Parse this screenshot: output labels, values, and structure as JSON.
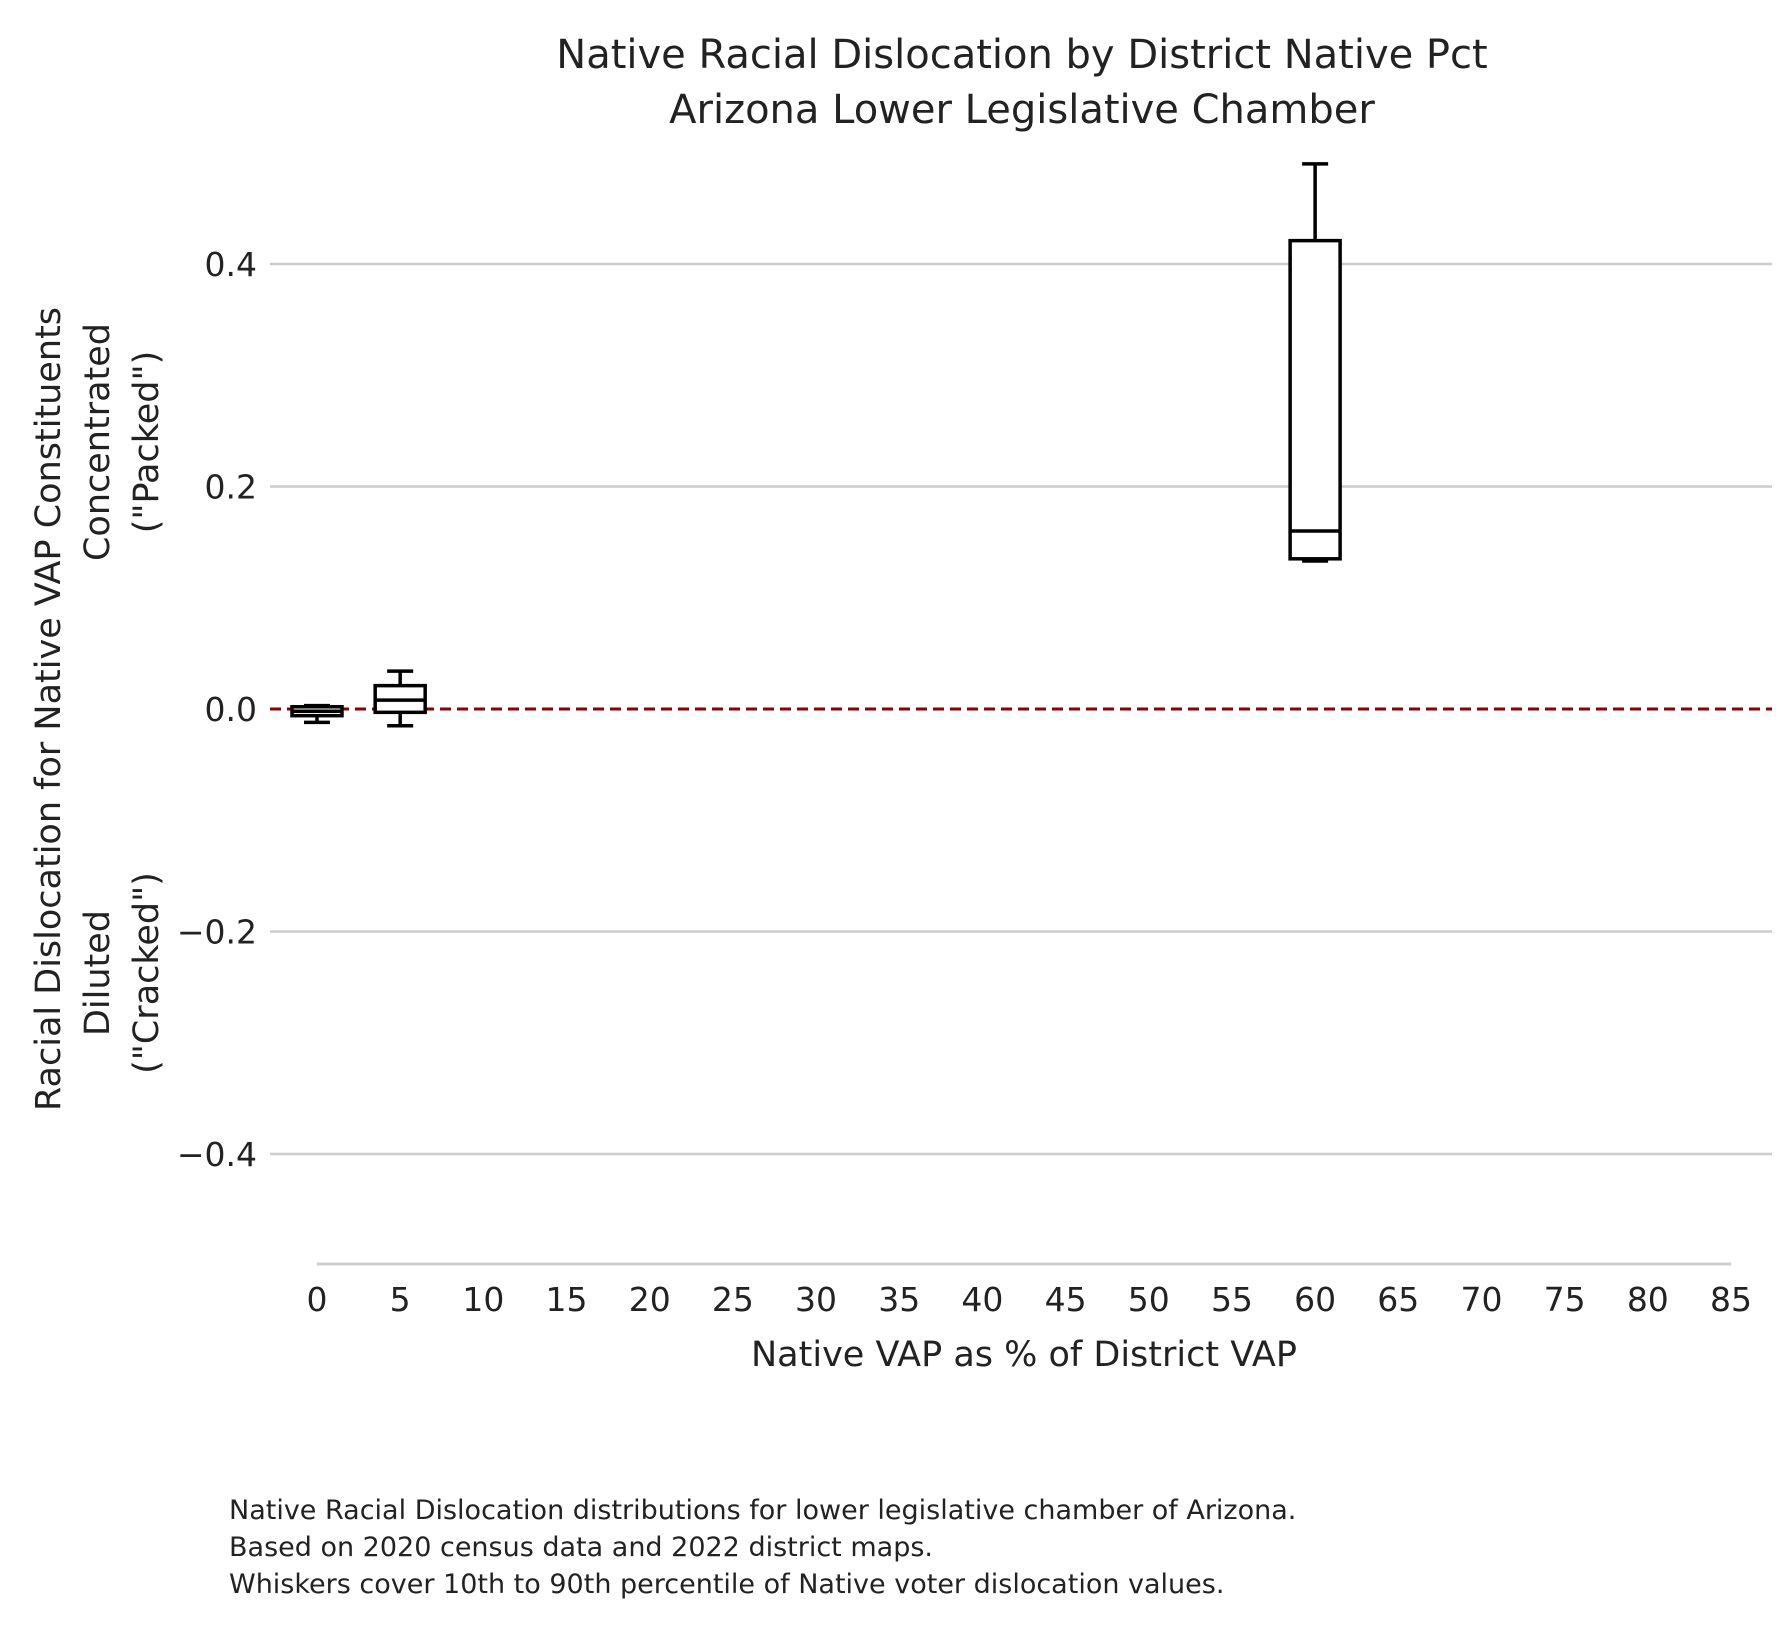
{
  "chart_data": {
    "type": "box",
    "title": [
      "Native Racial Dislocation by District Native Pct",
      "Arizona Lower Legislative Chamber"
    ],
    "xlabel": "Native VAP as % of District VAP",
    "ylabel": [
      "Racial Dislocation for Native VAP Constituents",
      "Concentrated",
      "(\"Packed\")",
      "Diluted",
      "(\"Cracked\")"
    ],
    "xlim": [
      0,
      85
    ],
    "ylim": [
      -0.5,
      0.5
    ],
    "xticks": [
      "0",
      "5",
      "10",
      "15",
      "20",
      "25",
      "30",
      "35",
      "40",
      "45",
      "50",
      "55",
      "60",
      "65",
      "70",
      "75",
      "80",
      "85"
    ],
    "yticks": [
      {
        "value": 0.4,
        "label": "0.4"
      },
      {
        "value": 0.2,
        "label": "0.2"
      },
      {
        "value": 0.0,
        "label": "0.0"
      },
      {
        "value": -0.2,
        "label": "−0.2"
      },
      {
        "value": -0.4,
        "label": "−0.4"
      }
    ],
    "grid": "y",
    "reference_line": {
      "y": 0,
      "color": "#8b0000",
      "style": "dashed"
    },
    "boxes": [
      {
        "x": 0,
        "whisker_low": -0.012,
        "q1": -0.006,
        "median": -0.002,
        "q3": 0.002,
        "whisker_high": 0.003
      },
      {
        "x": 5,
        "whisker_low": -0.015,
        "q1": -0.003,
        "median": 0.008,
        "q3": 0.021,
        "whisker_high": 0.034
      },
      {
        "x": 60,
        "whisker_low": 0.133,
        "q1": 0.135,
        "median": 0.16,
        "q3": 0.421,
        "whisker_high": 0.49
      }
    ]
  },
  "caption": [
    "Native Racial Dislocation distributions for lower legislative chamber of Arizona.",
    "Based on 2020 census data and 2022 district maps.",
    "Whiskers cover 10th to 90th percentile of Native voter dislocation values."
  ]
}
